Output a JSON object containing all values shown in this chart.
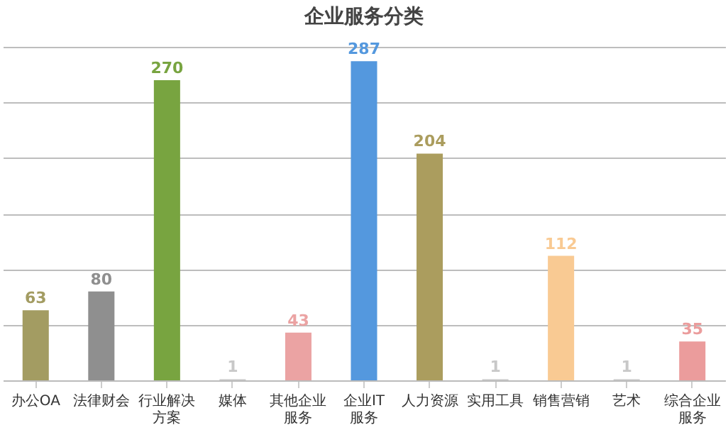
{
  "chart_data": {
    "type": "bar",
    "title": "企业服务分类",
    "categories": [
      "办公OA",
      "法律财会",
      "行业解决方案",
      "媒体",
      "其他企业服务",
      "企业IT服务",
      "人力资源",
      "实用工具",
      "销售营销",
      "艺术",
      "综合企业服务"
    ],
    "values": [
      63,
      80,
      270,
      1,
      43,
      287,
      204,
      1,
      112,
      1,
      35
    ],
    "colors": [
      "#a39c62",
      "#8f8f8f",
      "#78a440",
      "#c8c8c8",
      "#eba3a3",
      "#5498de",
      "#ab9d5e",
      "#c8c8c8",
      "#f9ca93",
      "#c8c8c8",
      "#eb9c9c"
    ],
    "grid": "y",
    "tick_labels": "x",
    "data_labels": true
  }
}
